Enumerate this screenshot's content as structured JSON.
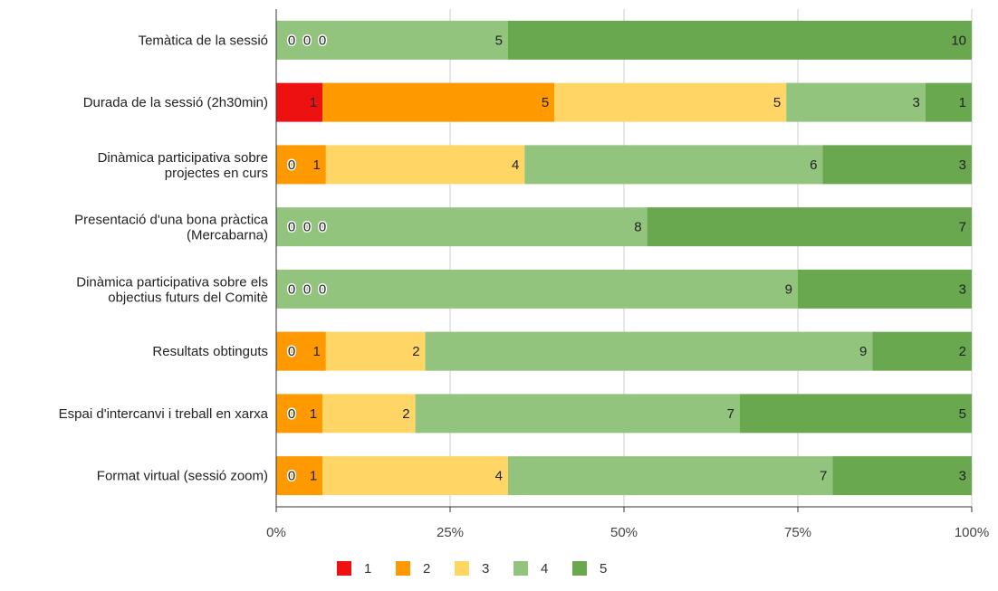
{
  "chart_data": {
    "type": "bar",
    "orientation": "horizontal",
    "stacked": "percent",
    "categories": [
      [
        "Temàtica de la sessió"
      ],
      [
        "Durada de la sessió (2h30min)"
      ],
      [
        "Dinàmica participativa sobre",
        "projectes en curs"
      ],
      [
        "Presentació d'una bona pràctica",
        "(Mercabarna)"
      ],
      [
        "Dinàmica participativa sobre els",
        "objectius futurs del Comitè"
      ],
      [
        "Resultats obtinguts"
      ],
      [
        "Espai d'intercanvi i treball en xarxa"
      ],
      [
        "Format virtual (sessió zoom)"
      ]
    ],
    "series": [
      {
        "name": "1",
        "color": "#ee1111",
        "values": [
          0,
          1,
          0,
          0,
          0,
          0,
          0,
          0
        ]
      },
      {
        "name": "2",
        "color": "#ff9900",
        "values": [
          0,
          5,
          1,
          0,
          0,
          1,
          1,
          1
        ]
      },
      {
        "name": "3",
        "color": "#ffd666",
        "values": [
          0,
          5,
          4,
          0,
          0,
          2,
          2,
          4
        ]
      },
      {
        "name": "4",
        "color": "#93c47d",
        "values": [
          5,
          3,
          6,
          8,
          9,
          9,
          7,
          7
        ]
      },
      {
        "name": "5",
        "color": "#6aa84f",
        "values": [
          10,
          1,
          3,
          7,
          3,
          2,
          5,
          3
        ]
      }
    ],
    "xticks": [
      "0%",
      "25%",
      "50%",
      "75%",
      "100%"
    ],
    "xlim": [
      0,
      100
    ],
    "grid": true,
    "legend": "bottom"
  }
}
